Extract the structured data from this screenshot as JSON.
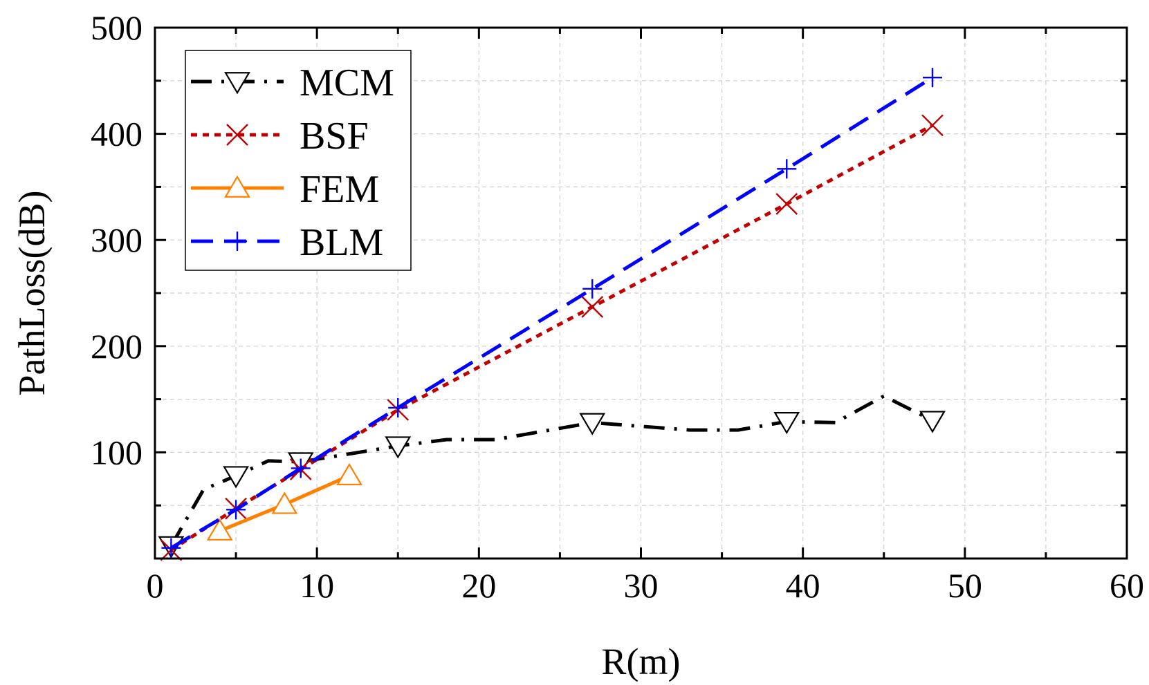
{
  "chart_data": {
    "type": "line",
    "title": "",
    "xlabel": "R(m)",
    "ylabel": "PathLoss(dB)",
    "xlim": [
      0,
      60
    ],
    "ylim": [
      0,
      500
    ],
    "xticks": [
      0,
      10,
      20,
      30,
      40,
      50,
      60
    ],
    "yticks": [
      100,
      200,
      300,
      400,
      500
    ],
    "grid": true,
    "legend_position": "top-left",
    "series": [
      {
        "name": "MCM",
        "color": "#000000",
        "line_style": "dash-dot",
        "marker": "triangle-down",
        "x": [
          1,
          3,
          5,
          7,
          9,
          11,
          15,
          18,
          21,
          27,
          33,
          36,
          39,
          42,
          45,
          48
        ],
        "y": [
          12,
          65,
          78,
          92,
          91,
          96,
          106,
          112,
          112,
          128,
          121,
          121,
          129,
          128,
          153,
          130
        ],
        "marker_indices": [
          0,
          2,
          4,
          6,
          9,
          12,
          15
        ]
      },
      {
        "name": "BSF",
        "color": "#c00000",
        "line_style": "dotted",
        "marker": "x",
        "x": [
          1,
          5,
          9,
          15,
          27,
          39,
          48
        ],
        "y": [
          8,
          47,
          84,
          140,
          237,
          334,
          408
        ]
      },
      {
        "name": "FEM",
        "color": "#ff8000",
        "line_style": "solid",
        "marker": "triangle-up",
        "x": [
          4,
          8,
          12
        ],
        "y": [
          26,
          51,
          78
        ]
      },
      {
        "name": "BLM",
        "color": "#0000ff",
        "line_style": "dashed",
        "marker": "plus",
        "x": [
          1,
          5,
          9,
          15,
          27,
          39,
          48
        ],
        "y": [
          10,
          46,
          85,
          142,
          254,
          367,
          453
        ]
      }
    ]
  }
}
